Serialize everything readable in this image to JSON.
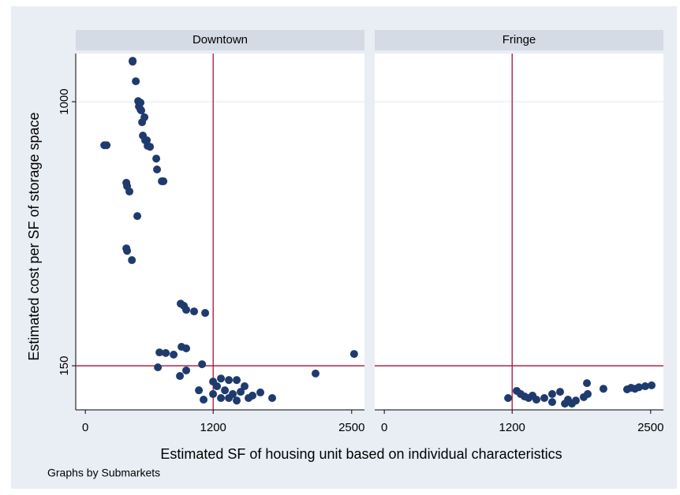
{
  "chart_data": {
    "type": "scatter",
    "y_label": "Estimated cost per SF of storage space",
    "x_label": "Estimated SF of housing unit based on individual characteristics",
    "note": "Graphs by Submarkets",
    "xlim": [
      -90,
      2620
    ],
    "ylim": [
      8,
      1155
    ],
    "xticks": [
      0,
      1200,
      2500
    ],
    "yticks": [
      150,
      1000
    ],
    "xline": 1200,
    "yline": 150,
    "color": "#1f3b6e",
    "line_color": "#a3143c",
    "panels": [
      {
        "title": "Downtown",
        "x": [
          444,
          444,
          474,
          496,
          518,
          503,
          525,
          518,
          533,
          555,
          540,
          562,
          585,
          607,
          577,
          666,
          673,
          718,
          733,
          200,
          178,
          385,
          392,
          414,
          488,
          385,
          392,
          437,
          895,
          925,
          947,
          1021,
          1125,
          696,
          755,
          829,
          903,
          947,
          681,
          888,
          947,
          1066,
          1096,
          1110,
          1199,
          1273,
          1347,
          1421,
          1236,
          1310,
          1384,
          1458,
          1495,
          1532,
          1569,
          1643,
          1754,
          2161,
          2523,
          1199,
          1273,
          1421,
          1347
        ],
        "y": [
          1132,
          1129,
          1066,
          1002,
          997,
          985,
          972,
          975,
          934,
          950,
          891,
          876,
          858,
          855,
          876,
          817,
          782,
          744,
          744,
          860,
          860,
          739,
          728,
          711,
          632,
          528,
          520,
          490,
          350,
          343,
          330,
          325,
          320,
          193,
          191,
          186,
          211,
          206,
          145,
          117,
          135,
          71,
          155,
          41,
          99,
          109,
          104,
          104,
          84,
          71,
          59,
          66,
          84,
          46,
          54,
          64,
          46,
          125,
          188,
          59,
          46,
          38,
          46
        ]
      },
      {
        "title": "Fringe",
        "x": [
          1162,
          1243,
          1280,
          1317,
          1354,
          1391,
          1428,
          1502,
          1576,
          1650,
          1695,
          1724,
          1798,
          1872,
          1909,
          1576,
          1761,
          1902,
          2057,
          2279,
          2316,
          2390,
          2449,
          2509,
          2353
        ],
        "y": [
          46,
          69,
          59,
          51,
          46,
          54,
          41,
          46,
          59,
          66,
          28,
          41,
          38,
          49,
          59,
          33,
          28,
          94,
          76,
          74,
          79,
          81,
          84,
          87,
          76
        ]
      }
    ]
  }
}
